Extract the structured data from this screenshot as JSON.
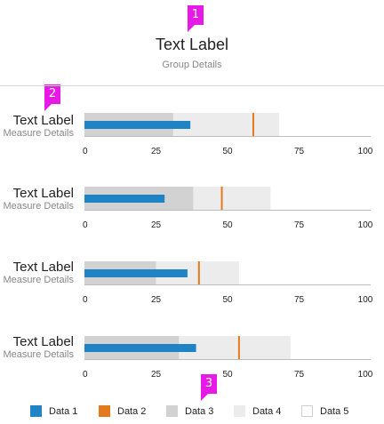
{
  "callouts": [
    "1",
    "2",
    "3"
  ],
  "group": {
    "title": "Text Label",
    "subtitle": "Group Details"
  },
  "colors": {
    "data1": "#1f84c6",
    "data2": "#e57a1c",
    "data3": "#d2d2d2",
    "data4": "#ececec",
    "data5": "#ffffff",
    "axis": "#bdbdbd"
  },
  "chart_data": [
    {
      "type": "bar",
      "subtype": "bullet",
      "title": "Text Label",
      "subtitle": "Measure Details",
      "xlim": [
        0,
        100
      ],
      "ticks": [
        0,
        25,
        50,
        75,
        100
      ],
      "series": [
        {
          "name": "Data 1",
          "role": "measure",
          "values": [
            37
          ]
        },
        {
          "name": "Data 2",
          "role": "target",
          "values": [
            59
          ]
        },
        {
          "name": "Data 3",
          "role": "range",
          "values": [
            31
          ]
        },
        {
          "name": "Data 4",
          "role": "range",
          "values": [
            68
          ]
        }
      ]
    },
    {
      "type": "bar",
      "subtype": "bullet",
      "title": "Text Label",
      "subtitle": "Measure Details",
      "xlim": [
        0,
        100
      ],
      "ticks": [
        0,
        25,
        50,
        75,
        100
      ],
      "series": [
        {
          "name": "Data 1",
          "role": "measure",
          "values": [
            28
          ]
        },
        {
          "name": "Data 2",
          "role": "target",
          "values": [
            48
          ]
        },
        {
          "name": "Data 3",
          "role": "range",
          "values": [
            38
          ]
        },
        {
          "name": "Data 4",
          "role": "range",
          "values": [
            65
          ]
        }
      ]
    },
    {
      "type": "bar",
      "subtype": "bullet",
      "title": "Text Label",
      "subtitle": "Measure Details",
      "xlim": [
        0,
        100
      ],
      "ticks": [
        0,
        25,
        50,
        75,
        100
      ],
      "series": [
        {
          "name": "Data 1",
          "role": "measure",
          "values": [
            36
          ]
        },
        {
          "name": "Data 2",
          "role": "target",
          "values": [
            40
          ]
        },
        {
          "name": "Data 3",
          "role": "range",
          "values": [
            25
          ]
        },
        {
          "name": "Data 4",
          "role": "range",
          "values": [
            54
          ]
        }
      ]
    },
    {
      "type": "bar",
      "subtype": "bullet",
      "title": "Text Label",
      "subtitle": "Measure Details",
      "xlim": [
        0,
        100
      ],
      "ticks": [
        0,
        25,
        50,
        75,
        100
      ],
      "series": [
        {
          "name": "Data 1",
          "role": "measure",
          "values": [
            39
          ]
        },
        {
          "name": "Data 2",
          "role": "target",
          "values": [
            54
          ]
        },
        {
          "name": "Data 3",
          "role": "range",
          "values": [
            33
          ]
        },
        {
          "name": "Data 4",
          "role": "range",
          "values": [
            72
          ]
        }
      ]
    }
  ],
  "legend": [
    {
      "label": "Data 1",
      "color": "#1f84c6"
    },
    {
      "label": "Data 2",
      "color": "#e57a1c"
    },
    {
      "label": "Data 3",
      "color": "#d2d2d2"
    },
    {
      "label": "Data 4",
      "color": "#ececec"
    },
    {
      "label": "Data 5",
      "color": "#ffffff"
    }
  ]
}
